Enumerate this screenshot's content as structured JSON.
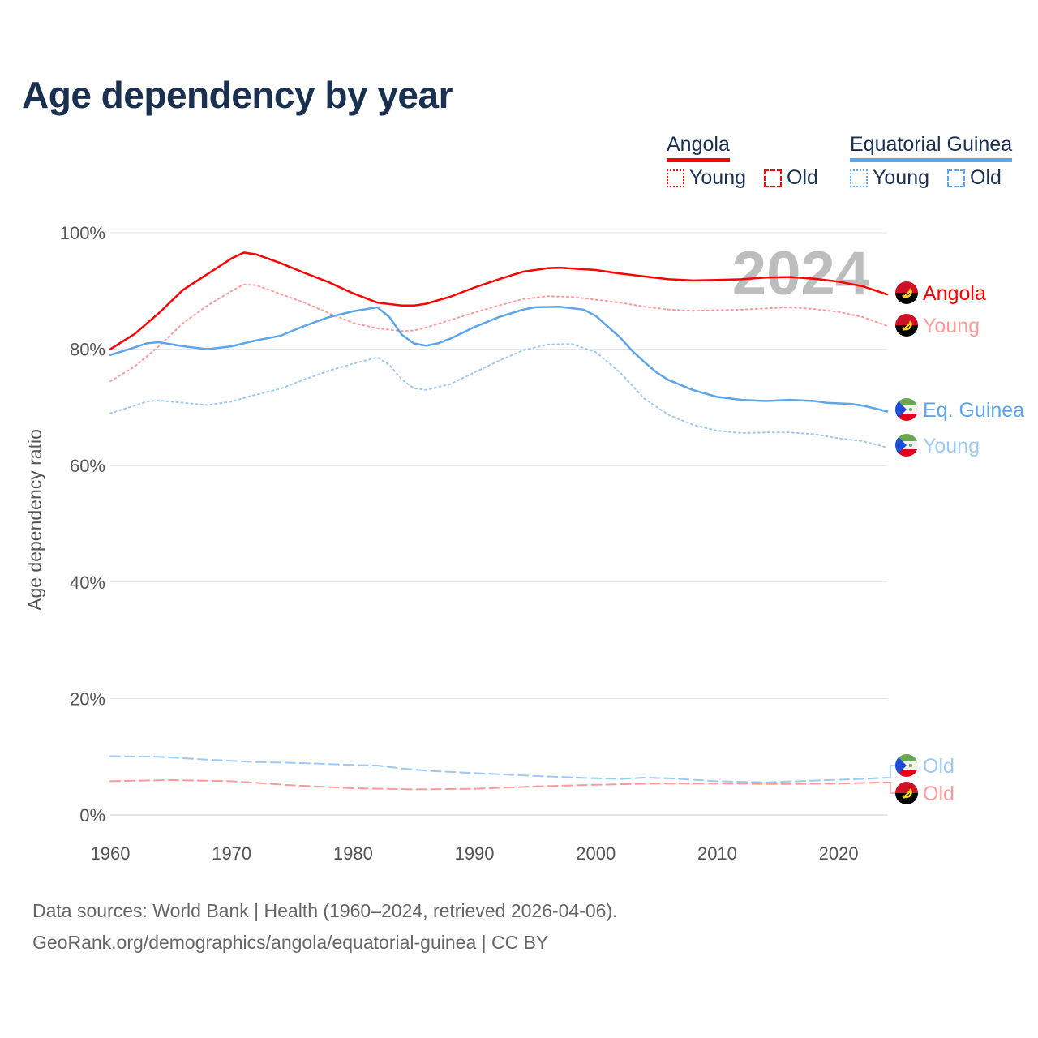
{
  "title": "Age dependency by year",
  "legend": {
    "groups": [
      {
        "name": "Angola",
        "color": "#ff0000",
        "items": [
          "Young",
          "Old"
        ]
      },
      {
        "name": "Equatorial Guinea",
        "color": "#5ca5ea",
        "items": [
          "Young",
          "Old"
        ]
      }
    ]
  },
  "year_watermark": "2024",
  "source_line1": "Data sources: World Bank | Health (1960–2024, retrieved 2026-04-06).",
  "source_line2": "GeoRank.org/demographics/angola/equatorial-guinea | CC BY",
  "chart_data": {
    "type": "line",
    "title": "Age dependency by year",
    "xlabel": "",
    "ylabel": "Age dependency ratio",
    "xlim": [
      1960,
      2024
    ],
    "ylim": [
      0,
      100
    ],
    "x_ticks": [
      "1960",
      "1970",
      "1980",
      "1990",
      "2000",
      "2010",
      "2020"
    ],
    "y_ticks": [
      "0%",
      "20%",
      "40%",
      "60%",
      "80%",
      "100%"
    ],
    "grid": true,
    "series": [
      {
        "name": "Angola",
        "end_label": "Angola",
        "flag": "angola",
        "color": "#ff0000",
        "style": "solid",
        "x": [
          1960,
          1962,
          1964,
          1966,
          1968,
          1970,
          1971,
          1972,
          1974,
          1976,
          1978,
          1980,
          1982,
          1984,
          1985,
          1986,
          1988,
          1990,
          1992,
          1994,
          1996,
          1997,
          2000,
          2002,
          2004,
          2006,
          2008,
          2010,
          2012,
          2014,
          2016,
          2018,
          2020,
          2022,
          2024
        ],
        "y": [
          80,
          82.6,
          86.2,
          90.2,
          92.9,
          95.6,
          96.6,
          96.3,
          94.8,
          93.1,
          91.5,
          89.6,
          88.0,
          87.5,
          87.5,
          87.8,
          89.0,
          90.6,
          92.0,
          93.3,
          93.9,
          94.0,
          93.6,
          93.0,
          92.5,
          92.0,
          91.8,
          91.9,
          92.0,
          92.3,
          92.4,
          92.1,
          91.6,
          90.8,
          89.4
        ]
      },
      {
        "name": "Angola Young",
        "end_label": "Young",
        "flag": "angola",
        "color": "#ff9a9a",
        "style": "dotted",
        "x": [
          1960,
          1962,
          1964,
          1966,
          1968,
          1970,
          1971,
          1972,
          1974,
          1976,
          1978,
          1980,
          1982,
          1984,
          1985,
          1986,
          1988,
          1990,
          1992,
          1994,
          1996,
          1998,
          2000,
          2002,
          2004,
          2006,
          2008,
          2010,
          2012,
          2014,
          2016,
          2018,
          2020,
          2022,
          2024
        ],
        "y": [
          74.5,
          77.0,
          80.5,
          84.5,
          87.5,
          90.0,
          91.1,
          91.0,
          89.5,
          88.0,
          86.2,
          84.5,
          83.6,
          83.1,
          83.2,
          83.7,
          85.0,
          86.3,
          87.5,
          88.6,
          89.1,
          89.0,
          88.5,
          88.0,
          87.3,
          86.8,
          86.6,
          86.7,
          86.8,
          87.0,
          87.2,
          86.9,
          86.4,
          85.5,
          84.0
        ]
      },
      {
        "name": "Angola Old",
        "end_label": "Old",
        "flag": "angola",
        "color": "#ff9a9a",
        "style": "dashed",
        "x": [
          1960,
          1965,
          1970,
          1975,
          1980,
          1985,
          1990,
          1995,
          2000,
          2005,
          2010,
          2015,
          2020,
          2024
        ],
        "y": [
          5.8,
          6.0,
          5.8,
          5.1,
          4.6,
          4.4,
          4.5,
          4.9,
          5.2,
          5.4,
          5.4,
          5.3,
          5.4,
          5.6
        ]
      },
      {
        "name": "Equatorial Guinea",
        "end_label": "Eq. Guinea",
        "flag": "eq-guinea",
        "color": "#5ca5ea",
        "style": "solid",
        "x": [
          1960,
          1962,
          1963,
          1964,
          1966,
          1968,
          1970,
          1972,
          1974,
          1976,
          1978,
          1980,
          1982,
          1983,
          1984,
          1985,
          1986,
          1987,
          1988,
          1990,
          1992,
          1994,
          1995,
          1997,
          1999,
          2000,
          2002,
          2003,
          2004,
          2005,
          2006,
          2008,
          2010,
          2012,
          2014,
          2016,
          2018,
          2019,
          2021,
          2022,
          2024
        ],
        "y": [
          79.0,
          80.3,
          81.0,
          81.2,
          80.5,
          80.0,
          80.5,
          81.5,
          82.3,
          84.0,
          85.5,
          86.5,
          87.2,
          85.5,
          82.5,
          81.0,
          80.6,
          81.0,
          81.8,
          83.8,
          85.5,
          86.8,
          87.2,
          87.3,
          86.8,
          85.7,
          82.0,
          79.7,
          77.8,
          76.0,
          74.7,
          73.0,
          71.8,
          71.3,
          71.1,
          71.3,
          71.1,
          70.8,
          70.6,
          70.3,
          69.3
        ]
      },
      {
        "name": "Equatorial Guinea Young",
        "end_label": "Young",
        "flag": "eq-guinea",
        "color": "#9dc9f2",
        "style": "dotted",
        "x": [
          1960,
          1962,
          1963,
          1964,
          1966,
          1968,
          1970,
          1972,
          1974,
          1976,
          1978,
          1980,
          1982,
          1983,
          1984,
          1985,
          1986,
          1988,
          1990,
          1992,
          1994,
          1996,
          1998,
          2000,
          2002,
          2004,
          2006,
          2008,
          2010,
          2012,
          2014,
          2016,
          2018,
          2020,
          2022,
          2024
        ],
        "y": [
          69.0,
          70.3,
          71.0,
          71.2,
          70.8,
          70.4,
          71.0,
          72.2,
          73.2,
          74.8,
          76.3,
          77.5,
          78.6,
          77.3,
          74.8,
          73.3,
          73.0,
          74.0,
          76.0,
          78.0,
          79.8,
          80.8,
          80.9,
          79.5,
          76.0,
          71.5,
          68.7,
          67.0,
          66.0,
          65.6,
          65.7,
          65.7,
          65.4,
          64.7,
          64.2,
          63.1
        ]
      },
      {
        "name": "Equatorial Guinea Old",
        "end_label": "Old",
        "flag": "eq-guinea",
        "color": "#9dc9f2",
        "style": "dashed",
        "x": [
          1960,
          1964,
          1968,
          1972,
          1976,
          1980,
          1982,
          1984,
          1986,
          1990,
          1995,
          2000,
          2002,
          2004,
          2006,
          2010,
          2014,
          2018,
          2022,
          2024
        ],
        "y": [
          10.1,
          10.0,
          9.5,
          9.1,
          8.9,
          8.6,
          8.5,
          8.0,
          7.6,
          7.2,
          6.7,
          6.3,
          6.2,
          6.4,
          6.3,
          5.8,
          5.6,
          5.9,
          6.2,
          6.4
        ]
      }
    ]
  }
}
